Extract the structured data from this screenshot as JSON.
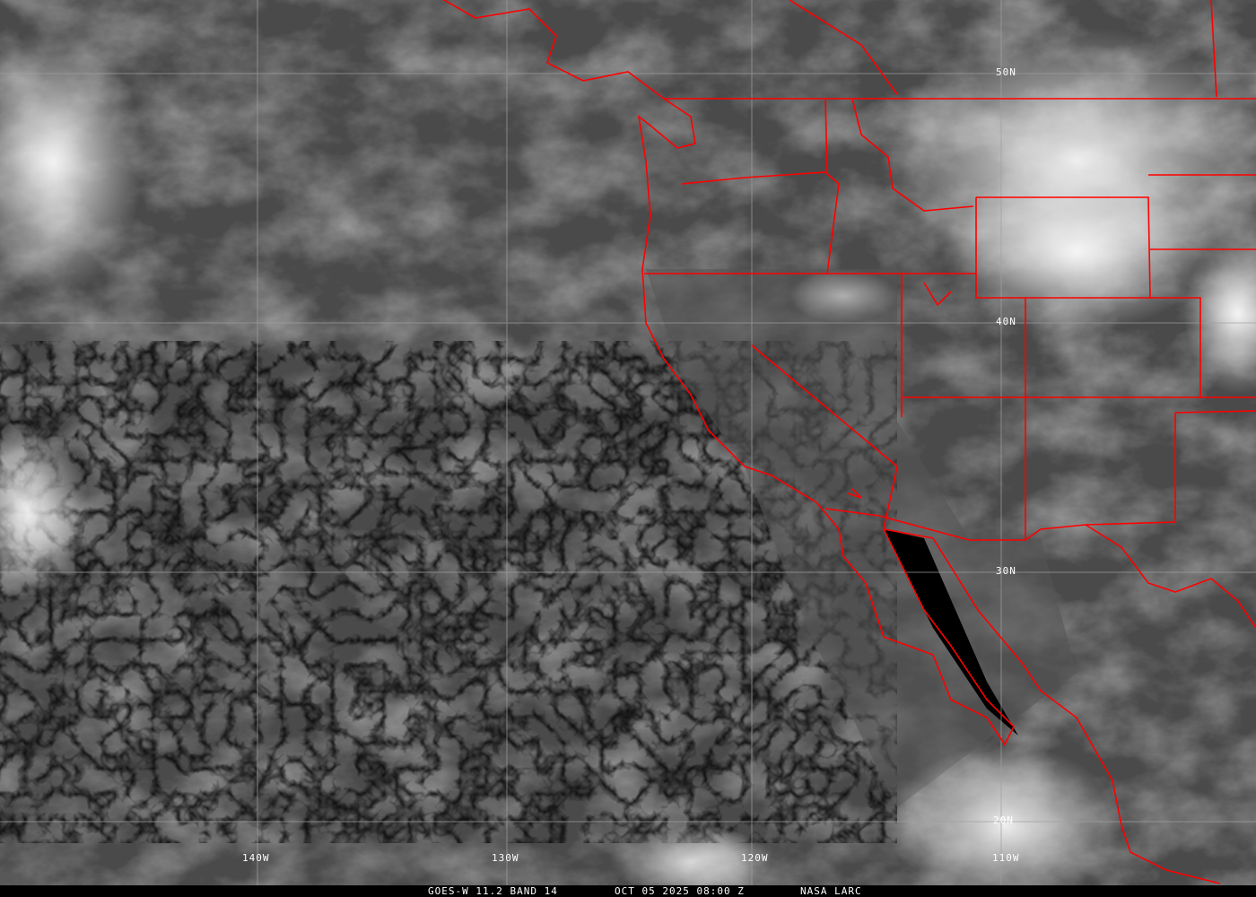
{
  "caption": {
    "satellite": "GOES-W 11.2 BAND 14",
    "datetime": "OCT 05 2025 08:00 Z",
    "credit": "NASA LARC"
  },
  "grid": {
    "latitudes": [
      "50N",
      "40N",
      "30N",
      "20N"
    ],
    "longitudes": [
      "140W",
      "130W",
      "120W",
      "110W"
    ]
  },
  "colors": {
    "borders": "#ff0000",
    "grid": "#a0a0a0",
    "caption_bg": "#000000",
    "caption_text": "#ffffff"
  }
}
